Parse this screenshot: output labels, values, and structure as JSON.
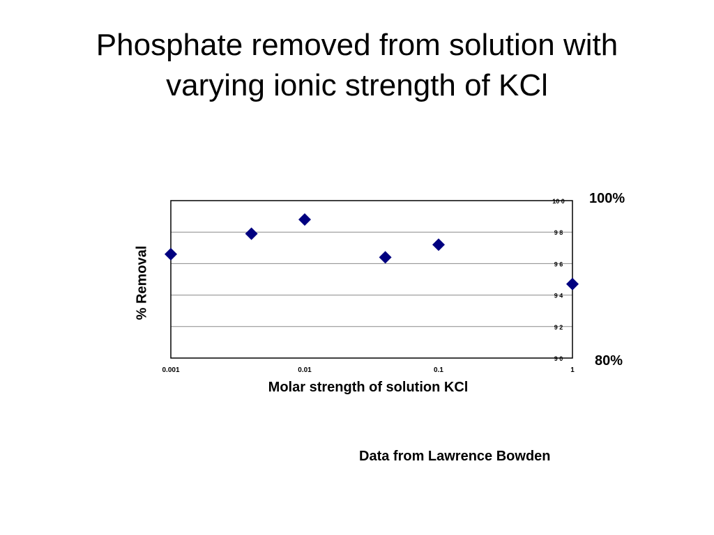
{
  "slide": {
    "title_line1": "Phosphate removed from solution with",
    "title_line2": "varying ionic strength of KCl",
    "source": "Data from Lawrence Bowden"
  },
  "chart_data": {
    "type": "scatter",
    "title": "",
    "xlabel": "Molar strength of solution KCl",
    "ylabel": "% Removal",
    "x_scale": "log",
    "xlim": [
      0.001,
      1
    ],
    "ylim": [
      90,
      100
    ],
    "x_ticks": [
      "0.001",
      "0.01",
      "0.1",
      "1"
    ],
    "y_ticks": [
      "9 0",
      "9 2",
      "9 4",
      "9 6",
      "9 8",
      "10 0"
    ],
    "grid": true,
    "legend": "none",
    "marker": "diamond",
    "marker_color": "#000080",
    "series": [
      {
        "x": [
          0.001,
          0.004,
          0.01,
          0.04,
          0.1,
          1
        ],
        "y": [
          96.6,
          97.9,
          98.8,
          96.4,
          97.2,
          94.7
        ]
      }
    ],
    "annotations": {
      "top": "100%",
      "bottom": "80%"
    }
  }
}
